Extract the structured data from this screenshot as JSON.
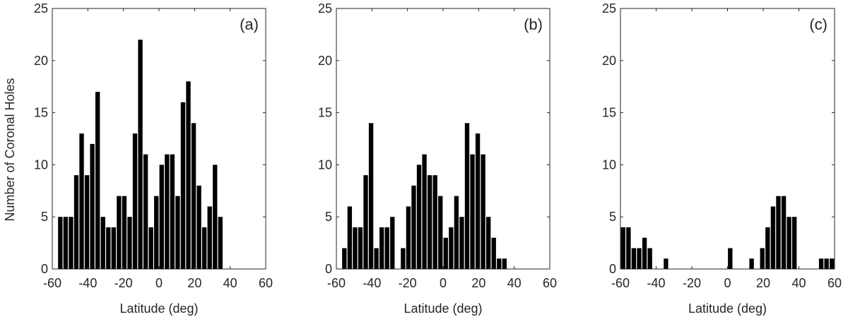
{
  "figure": {
    "ylabel": "Number of Coronal Holes"
  },
  "chart_data": [
    {
      "type": "bar",
      "panel_label": "(a)",
      "xlabel": "Latitude (deg)",
      "ylabel": "Number of Coronal Holes",
      "xlim": [
        -60,
        60
      ],
      "ylim": [
        0,
        25
      ],
      "xticks": [
        -60,
        -40,
        -20,
        0,
        20,
        40,
        60
      ],
      "yticks": [
        0,
        5,
        10,
        15,
        20,
        25
      ],
      "bin_width": 3,
      "x": [
        -58.5,
        -55.5,
        -52.5,
        -49.5,
        -46.5,
        -43.5,
        -40.5,
        -37.5,
        -34.5,
        -31.5,
        -28.5,
        -25.5,
        -22.5,
        -19.5,
        -16.5,
        -13.5,
        -10.5,
        -7.5,
        -4.5,
        -1.5,
        1.5,
        4.5,
        7.5,
        10.5,
        13.5,
        16.5,
        19.5,
        22.5,
        25.5,
        28.5,
        31.5,
        34.5,
        37.5,
        40.5,
        43.5,
        46.5,
        49.5,
        52.5,
        55.5,
        58.5
      ],
      "values": [
        0,
        5,
        5,
        5,
        9,
        13,
        9,
        12,
        17,
        5,
        4,
        4,
        7,
        7,
        5,
        13,
        22,
        11,
        4,
        7,
        10,
        11,
        11,
        7,
        16,
        18,
        14,
        8,
        4,
        6,
        10,
        5,
        0,
        0,
        0,
        0,
        0,
        0,
        0,
        0
      ],
      "grid": false,
      "color": "#000000"
    },
    {
      "type": "bar",
      "panel_label": "(b)",
      "xlabel": "Latitude (deg)",
      "ylabel": "",
      "xlim": [
        -60,
        60
      ],
      "ylim": [
        0,
        25
      ],
      "xticks": [
        -60,
        -40,
        -20,
        0,
        20,
        40,
        60
      ],
      "yticks": [
        0,
        5,
        10,
        15,
        20,
        25
      ],
      "bin_width": 3,
      "x": [
        -58.5,
        -55.5,
        -52.5,
        -49.5,
        -46.5,
        -43.5,
        -40.5,
        -37.5,
        -34.5,
        -31.5,
        -28.5,
        -25.5,
        -22.5,
        -19.5,
        -16.5,
        -13.5,
        -10.5,
        -7.5,
        -4.5,
        -1.5,
        1.5,
        4.5,
        7.5,
        10.5,
        13.5,
        16.5,
        19.5,
        22.5,
        25.5,
        28.5,
        31.5,
        34.5,
        37.5,
        40.5,
        43.5,
        46.5,
        49.5,
        52.5,
        55.5,
        58.5
      ],
      "values": [
        0,
        2,
        6,
        4,
        4,
        9,
        14,
        2,
        4,
        4,
        5,
        0,
        2,
        6,
        8,
        10,
        11,
        9,
        9,
        7,
        3,
        4,
        7,
        5,
        14,
        11,
        13,
        11,
        5,
        3,
        1,
        1,
        0,
        0,
        0,
        0,
        0,
        0,
        0,
        0
      ],
      "grid": false,
      "color": "#000000"
    },
    {
      "type": "bar",
      "panel_label": "(c)",
      "xlabel": "Latitude (deg)",
      "ylabel": "",
      "xlim": [
        -60,
        60
      ],
      "ylim": [
        0,
        25
      ],
      "xticks": [
        -60,
        -40,
        -20,
        0,
        20,
        40,
        60
      ],
      "yticks": [
        0,
        5,
        10,
        15,
        20,
        25
      ],
      "bin_width": 3,
      "x": [
        -58.5,
        -55.5,
        -52.5,
        -49.5,
        -46.5,
        -43.5,
        -40.5,
        -37.5,
        -34.5,
        -31.5,
        -28.5,
        -25.5,
        -22.5,
        -19.5,
        -16.5,
        -13.5,
        -10.5,
        -7.5,
        -4.5,
        -1.5,
        1.5,
        4.5,
        7.5,
        10.5,
        13.5,
        16.5,
        19.5,
        22.5,
        25.5,
        28.5,
        31.5,
        34.5,
        37.5,
        40.5,
        43.5,
        46.5,
        49.5,
        52.5,
        55.5,
        58.5
      ],
      "values": [
        4,
        4,
        2,
        2,
        3,
        2,
        0,
        0,
        1,
        0,
        0,
        0,
        0,
        0,
        0,
        0,
        0,
        0,
        0,
        0,
        2,
        0,
        0,
        0,
        1,
        0,
        2,
        4,
        6,
        7,
        7,
        5,
        5,
        0,
        0,
        0,
        0,
        1,
        1,
        1
      ],
      "grid": false,
      "color": "#000000"
    }
  ]
}
